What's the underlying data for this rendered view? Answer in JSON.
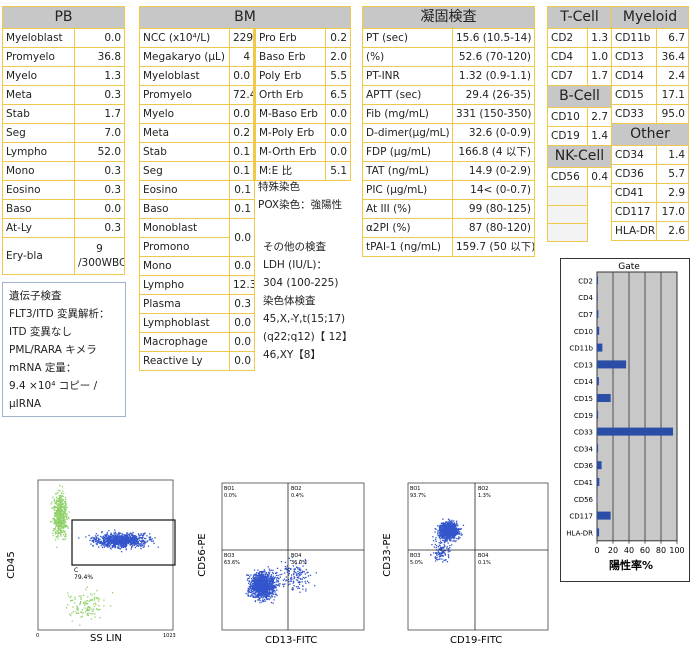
{
  "pb": {
    "title": "PB",
    "rows": [
      [
        "Myeloblast",
        "0.0"
      ],
      [
        "Promyelo",
        "36.8"
      ],
      [
        "Myelo",
        "1.3"
      ],
      [
        "Meta",
        "0.3"
      ],
      [
        "Stab",
        "1.7"
      ],
      [
        "Seg",
        "7.0"
      ],
      [
        "Lympho",
        "52.0"
      ],
      [
        "Mono",
        "0.3"
      ],
      [
        "Eosino",
        "0.3"
      ],
      [
        "Baso",
        "0.0"
      ],
      [
        "At-Ly",
        "0.3"
      ]
    ],
    "erybla_label": "Ery-bla",
    "erybla_value_1": "9",
    "erybla_value_2": "/300WBC"
  },
  "bm": {
    "title": "BM",
    "left": [
      [
        "NCC (x10⁴/L)",
        "229"
      ],
      [
        "Megakaryo (μL)",
        "4"
      ],
      [
        "Myeloblast",
        "0.0"
      ],
      [
        "Promyelo",
        "72.4"
      ],
      [
        "Myelo",
        "0.0"
      ],
      [
        "Meta",
        "0.2"
      ],
      [
        "Stab",
        "0.1"
      ],
      [
        "Seg",
        "0.1"
      ],
      [
        "Eosino",
        "0.1"
      ],
      [
        "Baso",
        "0.1"
      ],
      [
        "Monoblast",
        ""
      ],
      [
        "Promono",
        "0.0"
      ],
      [
        "Mono",
        "0.0"
      ],
      [
        "Lympho",
        "12.3"
      ],
      [
        "Plasma",
        "0.3"
      ],
      [
        "Lymphoblast",
        "0.0"
      ],
      [
        "Macrophage",
        "0.0"
      ],
      [
        "Reactive Ly",
        "0.0"
      ]
    ],
    "right": [
      [
        "Pro Erb",
        "0.2"
      ],
      [
        "Baso Erb",
        "2.0"
      ],
      [
        "Poly Erb",
        "5.5"
      ],
      [
        "Orth Erb",
        "6.5"
      ],
      [
        "M-Baso Erb",
        "0.0"
      ],
      [
        "M-Poly Erb",
        "0.0"
      ],
      [
        "M-Orth Erb",
        "0.0"
      ],
      [
        "M:E 比",
        "5.1"
      ]
    ],
    "special_stain_title": "特殊染色",
    "pox": "POX染色：強陽性",
    "other_title": "その他の検査",
    "ldh_label": "LDH (IU/L)：",
    "ldh_value": "304 (100-225)",
    "chrom_title": "染色体検査",
    "chrom_1": "45,X,-Y,t(15;17)",
    "chrom_2": "(q22;q12)【 12】",
    "chrom_3": "46,XY【8】"
  },
  "coag": {
    "title": "凝固検査",
    "rows": [
      [
        "PT (sec)",
        "15.6 (10.5-14)"
      ],
      [
        "(%)",
        "52.6 (70-120)"
      ],
      [
        "PT-INR",
        "1.32 (0.9-1.1)"
      ],
      [
        "APTT (sec)",
        "29.4 (26-35)"
      ],
      [
        "Fib (mg/mL)",
        "331 (150-350)"
      ],
      [
        "D-dimer(μg/mL)",
        "32.6 (0-0.9)"
      ],
      [
        "FDP (μg/mL)",
        "166.8 (4 以下)"
      ],
      [
        "TAT (ng/mL)",
        "14.9 (0-2.9)"
      ],
      [
        "PIC (μg/mL)",
        "14< (0-0.7)"
      ],
      [
        "At III (%)",
        "99 (80-125)"
      ],
      [
        "α2PI (%)",
        "87 (80-120)"
      ],
      [
        "tPAI-1 (ng/mL)",
        "159.7 (50 以下)"
      ]
    ]
  },
  "tcell": {
    "title": "T-Cell",
    "rows": [
      [
        "CD2",
        "1.3"
      ],
      [
        "CD4",
        "1.0"
      ],
      [
        "CD7",
        "1.7"
      ]
    ]
  },
  "bcell": {
    "title": "B-Cell",
    "rows": [
      [
        "CD10",
        "2.7"
      ],
      [
        "CD19",
        "1.4"
      ]
    ]
  },
  "nkcell": {
    "title": "NK-Cell",
    "rows": [
      [
        "CD56",
        "0.4"
      ]
    ]
  },
  "myeloid": {
    "title": "Myeloid",
    "rows": [
      [
        "CD11b",
        "6.7"
      ],
      [
        "CD13",
        "36.4"
      ],
      [
        "CD14",
        "2.4"
      ],
      [
        "CD15",
        "17.1"
      ],
      [
        "CD33",
        "95.0"
      ]
    ]
  },
  "other": {
    "title": "Other",
    "rows": [
      [
        "CD34",
        "1.4"
      ],
      [
        "CD36",
        "5.7"
      ],
      [
        "CD41",
        "2.9"
      ],
      [
        "CD117",
        "17.0"
      ],
      [
        "HLA-DR",
        "2.6"
      ]
    ]
  },
  "gene": {
    "l1": "遺伝子検査",
    "l2": "FLT3/ITD 変異解析：",
    "l3": "ITD 変異なし",
    "l4": "PML/RARA キメラ",
    "l5": "mRNA 定量：",
    "l6": "9.4 ×10⁴ コピー /",
    "l7": "μIRNA"
  },
  "chart_data": {
    "type": "bar",
    "title": "Gate",
    "xlabel": "陽性率%",
    "xlim": [
      0,
      100
    ],
    "xticks": [
      "0",
      "20",
      "40",
      "60",
      "80",
      "100"
    ],
    "categories": [
      "CD2",
      "CD4",
      "CD7",
      "CD10",
      "CD11b",
      "CD13",
      "CD14",
      "CD15",
      "CD19",
      "CD33",
      "CD34",
      "CD36",
      "CD41",
      "CD56",
      "CD117",
      "HLA-DR"
    ],
    "values": [
      1.3,
      1.0,
      1.7,
      2.7,
      6.7,
      36.4,
      2.4,
      17.1,
      1.4,
      95.0,
      1.4,
      5.7,
      2.9,
      0.4,
      17.0,
      2.6
    ],
    "bar_color": "#2a4da8",
    "bg_color": "#c8c8c8"
  },
  "flow": {
    "p1_ylabel": "CD45",
    "p1_xlabel": "SS LIN",
    "p1_gate": "C",
    "p1_pct": "79.4%",
    "p1_tick0": "0",
    "p1_tick1": "1023",
    "p2_ylabel": "CD56-PE",
    "p2_xlabel": "CD13-FITC",
    "p2_q1": "BO1",
    "p2_q1v": "0.0%",
    "p2_q2": "BO2",
    "p2_q2v": "0.4%",
    "p2_q3": "BO3",
    "p2_q3v": "63.6%",
    "p2_q4": "BO4",
    "p2_q4v": "36.0%",
    "p3_ylabel": "CD33-PE",
    "p3_xlabel": "CD19-FITC",
    "p3_q1": "BO1",
    "p3_q1v": "93.7%",
    "p3_q2": "BO2",
    "p3_q2v": "1.3%",
    "p3_q3": "BO3",
    "p3_q3v": "5.0%",
    "p3_q4": "BO4",
    "p3_q4v": "0.1%"
  }
}
